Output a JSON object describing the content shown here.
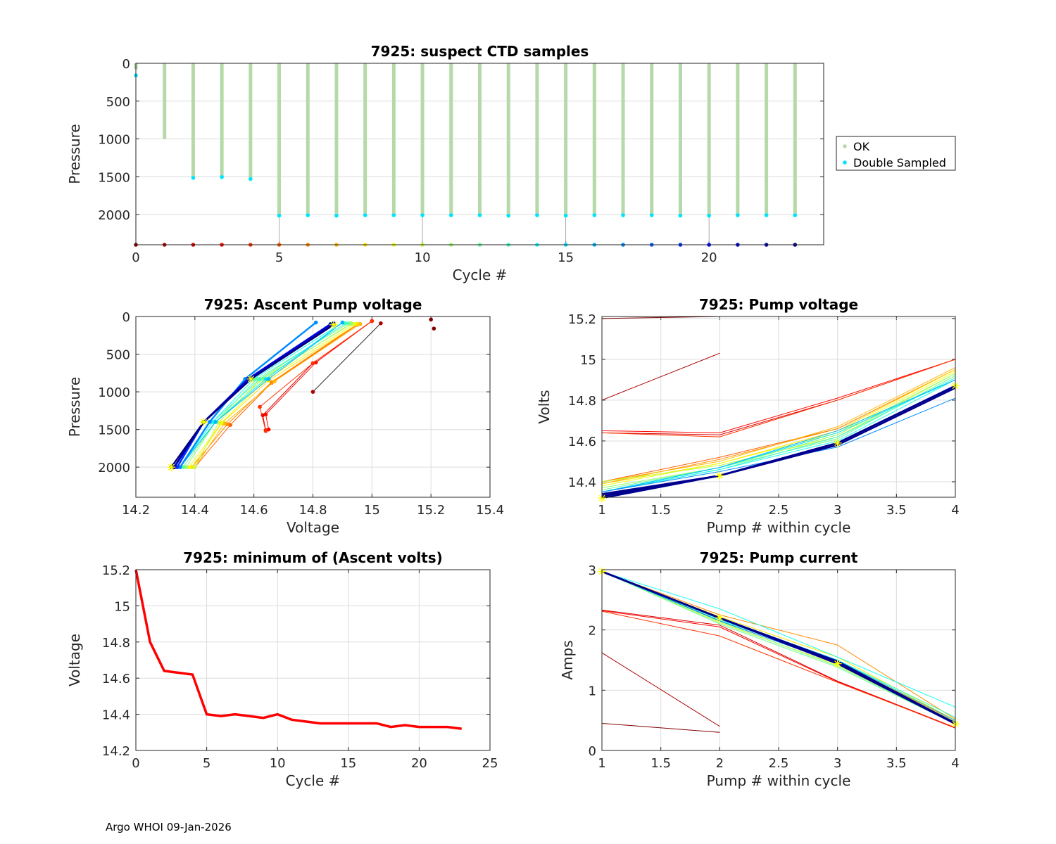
{
  "footer": "Argo WHOI 09-Jan-2026",
  "chart_data": [
    {
      "id": "ctd",
      "type": "scatter",
      "title": "7925: suspect CTD samples",
      "xlabel": "Cycle #",
      "ylabel": "Pressure",
      "xlim": [
        0,
        24
      ],
      "ylim": [
        0,
        2400
      ],
      "yreverse": true,
      "xticks": [
        0,
        5,
        10,
        15,
        20
      ],
      "yticks": [
        0,
        500,
        1000,
        1500,
        2000
      ],
      "legend": {
        "placement": "outside-right",
        "entries": [
          {
            "label": "OK",
            "color": "#b5d9a8"
          },
          {
            "label": "Double Sampled",
            "color": "#00e5ff"
          }
        ]
      },
      "cycles": [
        0,
        1,
        2,
        3,
        4,
        5,
        6,
        7,
        8,
        9,
        10,
        11,
        12,
        13,
        14,
        15,
        16,
        17,
        18,
        19,
        20,
        21,
        22,
        23
      ],
      "ok_max_pressure": [
        80,
        1000,
        1510,
        1500,
        1530,
        2010,
        2010,
        2010,
        2010,
        2010,
        2010,
        2010,
        2010,
        2010,
        2010,
        2010,
        2010,
        2010,
        2010,
        2010,
        2010,
        2010,
        2010,
        2010
      ],
      "double_sampled_pressure": [
        160,
        null,
        1515,
        1505,
        1530,
        2015,
        2010,
        2015,
        2010,
        2010,
        2010,
        2010,
        2010,
        2015,
        2010,
        2015,
        2010,
        2010,
        2010,
        2015,
        2015,
        2010,
        2010,
        2010
      ],
      "cycle_marker_pressure": 2400
    },
    {
      "id": "ascent",
      "type": "line",
      "title": "7925: Ascent Pump voltage",
      "xlabel": "Voltage",
      "ylabel": "Pressure",
      "xlim": [
        14.2,
        15.4
      ],
      "ylim": [
        0,
        2400
      ],
      "yreverse": true,
      "xticks": [
        14.2,
        14.4,
        14.6,
        14.8,
        15,
        15.2,
        15.4
      ],
      "yticks": [
        0,
        500,
        1000,
        1500,
        2000
      ]
    },
    {
      "id": "pumpv",
      "type": "line",
      "title": "7925: Pump voltage",
      "xlabel": "Pump # within cycle",
      "ylabel": "Volts",
      "xlim": [
        1,
        4
      ],
      "ylim": [
        14.324,
        15.21
      ],
      "xticks": [
        1,
        1.5,
        2,
        2.5,
        3,
        3.5,
        4
      ],
      "yticks": [
        14.4,
        14.6,
        14.8,
        15,
        15.2
      ]
    },
    {
      "id": "minv",
      "type": "line",
      "title": "7925: minimum of (Ascent volts)",
      "xlabel": "Cycle #",
      "ylabel": "Voltage",
      "xlim": [
        0,
        25
      ],
      "ylim": [
        14.2,
        15.2
      ],
      "xticks": [
        0,
        5,
        10,
        15,
        20,
        25
      ],
      "yticks": [
        14.2,
        14.4,
        14.6,
        14.8,
        15,
        15.2
      ],
      "x": [
        0,
        1,
        2,
        3,
        4,
        5,
        6,
        7,
        8,
        9,
        10,
        11,
        12,
        13,
        14,
        15,
        16,
        17,
        18,
        19,
        20,
        21,
        22,
        23
      ],
      "y": [
        15.2,
        14.8,
        14.64,
        14.63,
        14.62,
        14.4,
        14.39,
        14.4,
        14.39,
        14.38,
        14.4,
        14.37,
        14.36,
        14.35,
        14.35,
        14.35,
        14.35,
        14.35,
        14.33,
        14.34,
        14.33,
        14.33,
        14.33,
        14.32
      ],
      "color": "#ff0000"
    },
    {
      "id": "pumpi",
      "type": "line",
      "title": "7925: Pump current",
      "xlabel": "Pump # within cycle",
      "ylabel": "Amps",
      "xlim": [
        1,
        4
      ],
      "ylim": [
        0,
        3
      ],
      "xticks": [
        1,
        1.5,
        2,
        2.5,
        3,
        3.5,
        4
      ],
      "yticks": [
        0,
        1,
        2,
        3
      ]
    }
  ],
  "pump_cycles": {
    "volts": [
      [
        15.2,
        15.21
      ],
      [
        14.8,
        15.03
      ],
      [
        14.64,
        14.63,
        14.8,
        15.0
      ],
      [
        14.65,
        14.64,
        14.81,
        15.0
      ],
      [
        14.64,
        14.62,
        14.8,
        15.0
      ],
      [
        14.4,
        14.52,
        14.66,
        14.95
      ],
      [
        14.39,
        14.51,
        14.66,
        14.95
      ],
      [
        14.4,
        14.5,
        14.67,
        14.96
      ],
      [
        14.39,
        14.49,
        14.65,
        14.95
      ],
      [
        14.38,
        14.49,
        14.64,
        14.94
      ],
      [
        14.4,
        14.48,
        14.62,
        14.93
      ],
      [
        14.37,
        14.47,
        14.63,
        14.93
      ],
      [
        14.36,
        14.47,
        14.61,
        14.92
      ],
      [
        14.35,
        14.46,
        14.62,
        14.91
      ],
      [
        14.35,
        14.46,
        14.6,
        14.9
      ],
      [
        14.35,
        14.47,
        14.64,
        14.9
      ],
      [
        14.35,
        14.47,
        14.65,
        14.9
      ],
      [
        14.35,
        14.45,
        14.57,
        14.81
      ],
      [
        14.33,
        14.43,
        14.59,
        14.87
      ],
      [
        14.34,
        14.43,
        14.59,
        14.87
      ],
      [
        14.33,
        14.43,
        14.59,
        14.87
      ],
      [
        14.33,
        14.43,
        14.58,
        14.86
      ],
      [
        14.33,
        14.43,
        14.59,
        14.87
      ],
      [
        14.32,
        14.43,
        14.59,
        14.87
      ]
    ],
    "pressures": [
      [
        40,
        160
      ],
      [
        1000,
        90
      ],
      [
        1510,
        1310,
        620,
        60
      ],
      [
        1500,
        1300,
        610,
        60
      ],
      [
        1520,
        1200,
        620,
        60
      ],
      [
        2000,
        1440,
        880,
        110
      ],
      [
        2000,
        1430,
        870,
        100
      ],
      [
        2000,
        1420,
        860,
        100
      ],
      [
        2000,
        1420,
        850,
        100
      ],
      [
        2000,
        1410,
        840,
        100
      ],
      [
        2000,
        1410,
        840,
        100
      ],
      [
        2000,
        1400,
        830,
        90
      ],
      [
        2000,
        1400,
        830,
        90
      ],
      [
        2000,
        1400,
        830,
        90
      ],
      [
        2000,
        1400,
        830,
        80
      ],
      [
        2000,
        1400,
        830,
        80
      ],
      [
        2000,
        1400,
        830,
        80
      ],
      [
        2000,
        1400,
        830,
        80
      ],
      [
        2000,
        1400,
        830,
        90
      ],
      [
        2000,
        1400,
        830,
        90
      ],
      [
        2000,
        1400,
        830,
        90
      ],
      [
        2000,
        1400,
        830,
        100
      ],
      [
        2000,
        1400,
        830,
        100
      ],
      [
        2000,
        1400,
        830,
        110
      ]
    ],
    "amps": [
      [
        0.45,
        0.3
      ],
      [
        1.62,
        0.4
      ],
      [
        2.33,
        2.08,
        1.15,
        0.38
      ],
      [
        2.32,
        2.05,
        1.14,
        0.37
      ],
      [
        2.31,
        1.9,
        1.13,
        0.38
      ],
      [
        2.98,
        2.2,
        1.45,
        0.5
      ],
      [
        2.97,
        2.25,
        1.75,
        0.52
      ],
      [
        2.96,
        2.18,
        1.5,
        0.48
      ],
      [
        2.97,
        2.22,
        1.55,
        0.5
      ],
      [
        2.97,
        2.15,
        1.45,
        0.46
      ],
      [
        2.97,
        2.12,
        1.42,
        0.45
      ],
      [
        2.97,
        2.14,
        1.4,
        0.45
      ],
      [
        2.97,
        2.1,
        1.38,
        0.44
      ],
      [
        2.97,
        2.16,
        1.5,
        0.55
      ],
      [
        2.97,
        2.35,
        1.55,
        0.72
      ],
      [
        2.97,
        2.2,
        1.5,
        0.5
      ],
      [
        2.97,
        2.18,
        1.45,
        0.47
      ],
      [
        2.97,
        2.15,
        1.45,
        0.45
      ],
      [
        2.97,
        2.2,
        1.48,
        0.45
      ],
      [
        2.97,
        2.2,
        1.45,
        0.45
      ],
      [
        2.97,
        2.2,
        1.45,
        0.45
      ],
      [
        2.97,
        2.2,
        1.45,
        0.45
      ],
      [
        2.97,
        2.2,
        1.45,
        0.45
      ],
      [
        2.97,
        2.2,
        1.44,
        0.44
      ]
    ],
    "highlight_color": "#ffff00"
  }
}
